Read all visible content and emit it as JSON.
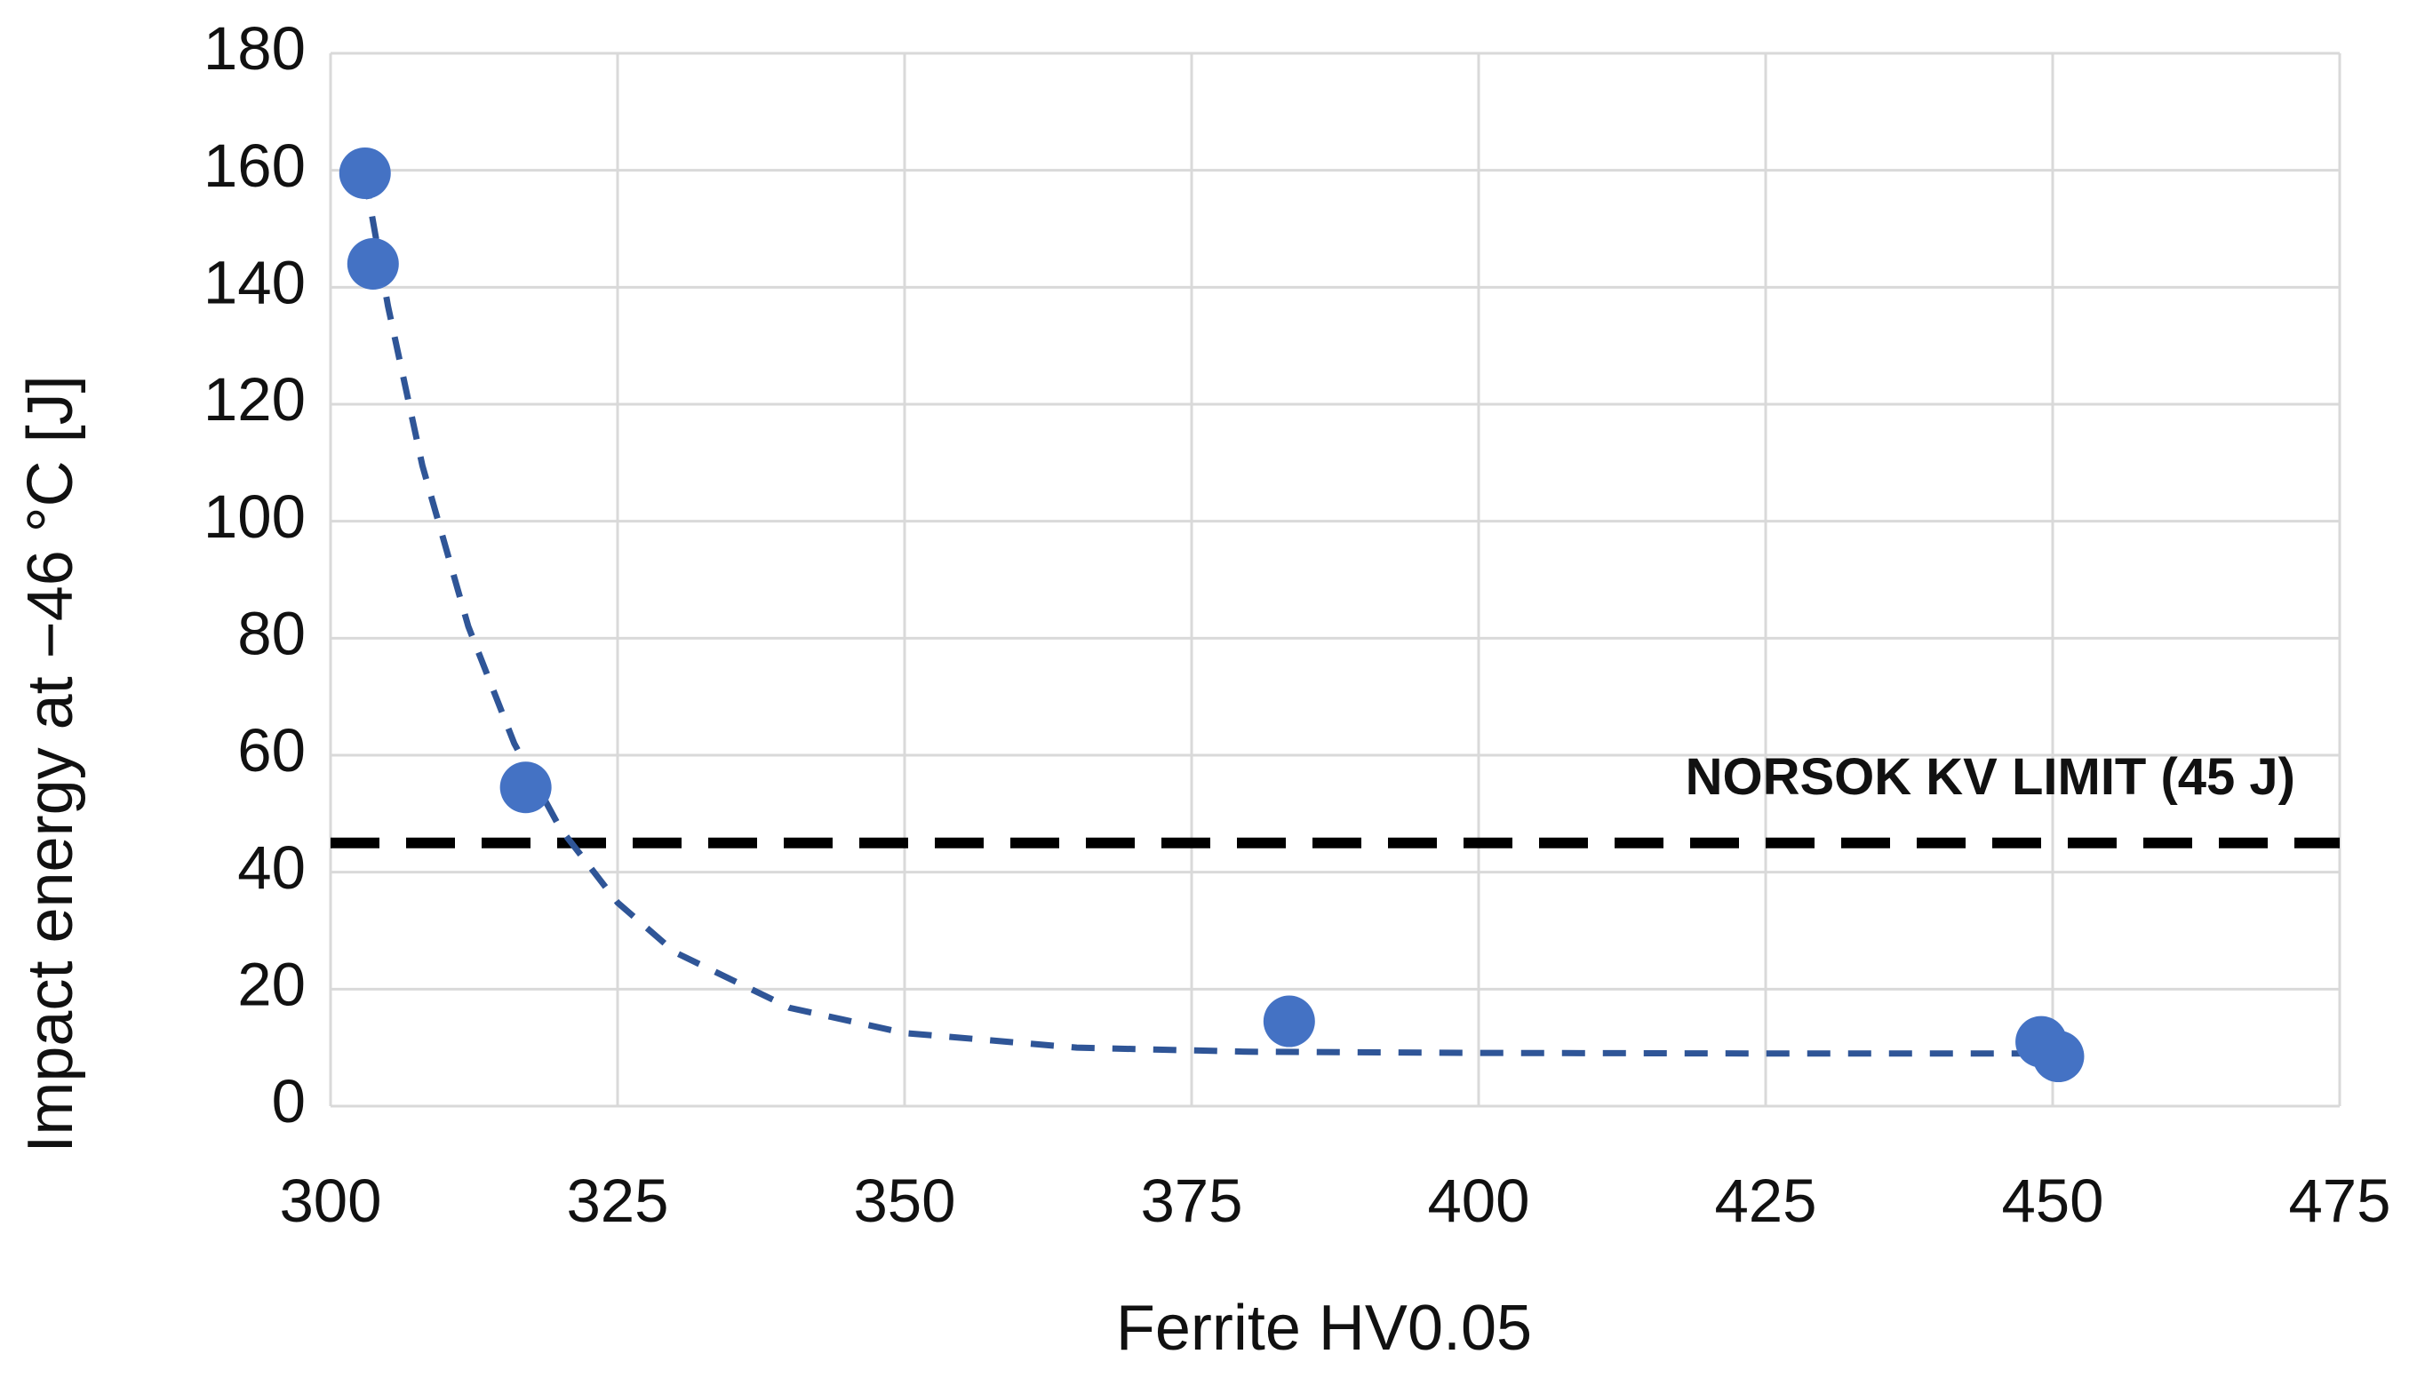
{
  "chart_data": {
    "type": "scatter",
    "x_label": "Ferrite HV0.05",
    "y_label": "Impact energy at −46 °C [J]",
    "series": [
      {
        "color": "#4472c4",
        "x": [
          303,
          303.7,
          317,
          383.5,
          449,
          450.5
        ],
        "values": [
          159.5,
          144,
          54.5,
          14.5,
          11,
          8.5
        ]
      }
    ],
    "trendline": {
      "color": "#2f5597",
      "x": [
        303,
        305,
        308,
        312,
        316,
        320,
        325,
        330,
        340,
        350,
        365,
        380,
        400,
        425,
        450
      ],
      "values": [
        159,
        136.8,
        109.5,
        82,
        62,
        47.5,
        34.8,
        26.3,
        16.8,
        12.5,
        10,
        9.3,
        9.1,
        9,
        9
      ]
    },
    "reference_line": {
      "value": 45,
      "label": "NORSOK KV LIMIT (45 J)",
      "color": "#000000"
    },
    "xlim": [
      300,
      475
    ],
    "xticks": [
      300,
      325,
      350,
      375,
      400,
      425,
      450,
      475
    ],
    "ylim": [
      0,
      180
    ],
    "yticks": [
      0,
      20,
      40,
      60,
      80,
      100,
      120,
      140,
      160,
      180
    ],
    "grid": true
  }
}
